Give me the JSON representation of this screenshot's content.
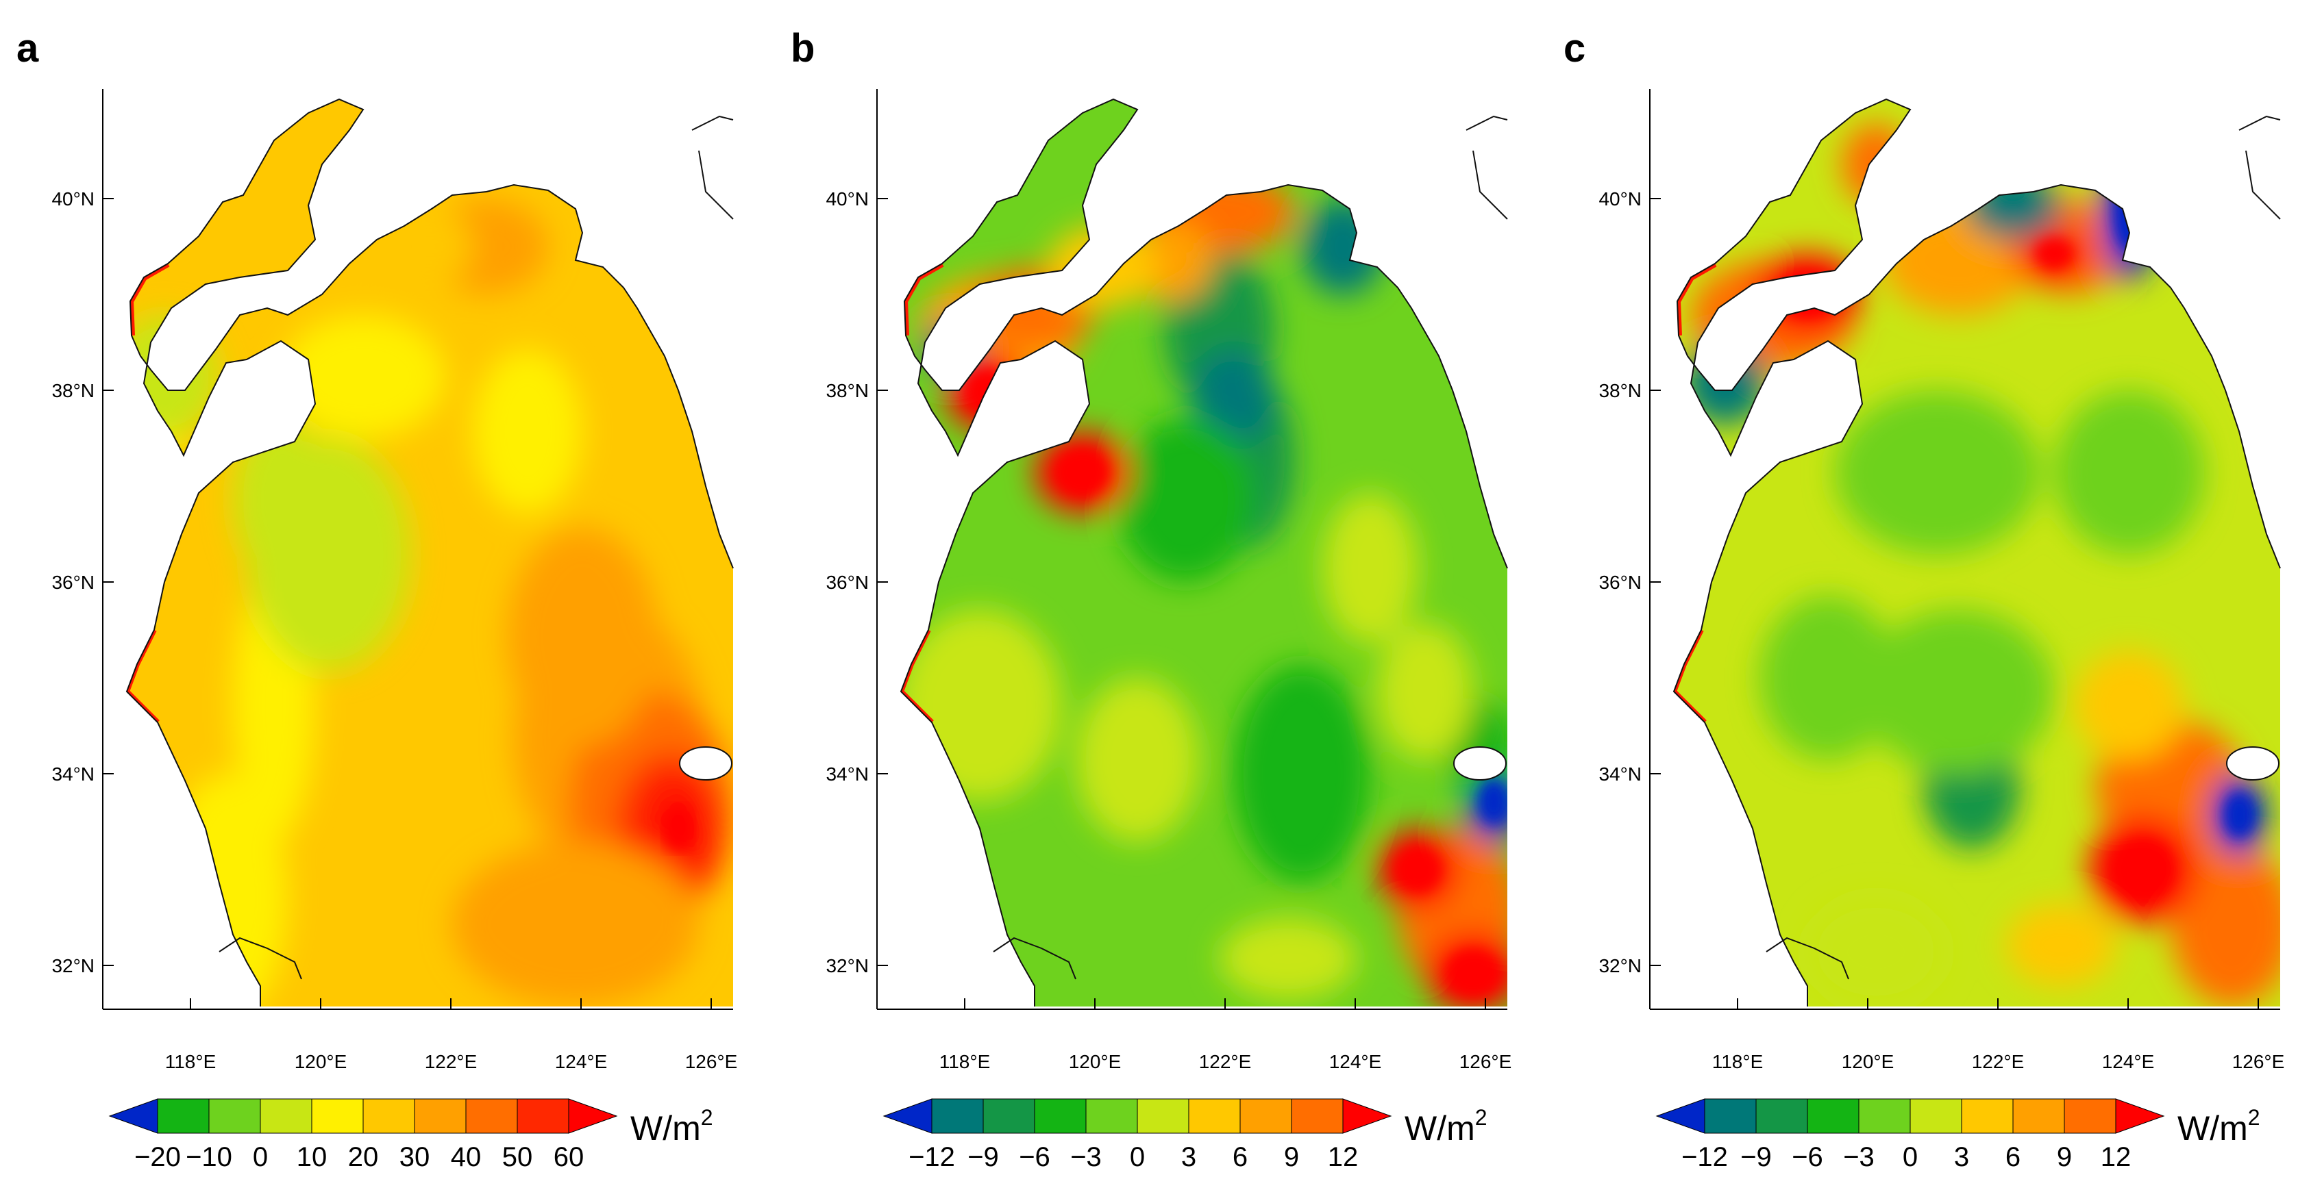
{
  "unit": "W/m",
  "unit_exp": "2",
  "lat_ticks": [
    "32°N",
    "34°N",
    "36°N",
    "38°N",
    "40°N"
  ],
  "lon_ticks": [
    "118°E",
    "120°E",
    "122°E",
    "124°E",
    "126°E"
  ],
  "panels": [
    {
      "letter": "a",
      "colorbar": {
        "colors": [
          "#0026c8",
          "#14b414",
          "#6ed21e",
          "#c8e614",
          "#fff000",
          "#ffc800",
          "#ffa000",
          "#ff6e00",
          "#ff2800",
          "#ff0000"
        ],
        "labels": [
          "−20",
          "−10",
          "0",
          "10",
          "20",
          "30",
          "40",
          "50",
          "60"
        ]
      }
    },
    {
      "letter": "b",
      "colorbar": {
        "colors": [
          "#0026c8",
          "#007878",
          "#149646",
          "#14b414",
          "#6ed21e",
          "#c8e614",
          "#ffc800",
          "#ffa000",
          "#ff6e00",
          "#ff0000"
        ],
        "labels": [
          "−12",
          "−9",
          "−6",
          "−3",
          "0",
          "3",
          "6",
          "9",
          "12"
        ]
      }
    },
    {
      "letter": "c",
      "colorbar": {
        "colors": [
          "#0026c8",
          "#007878",
          "#149646",
          "#14b414",
          "#6ed21e",
          "#c8e614",
          "#ffc800",
          "#ffa000",
          "#ff6e00",
          "#ff0000"
        ],
        "labels": [
          "−12",
          "−9",
          "−6",
          "−3",
          "0",
          "3",
          "6",
          "9",
          "12"
        ]
      }
    }
  ]
}
